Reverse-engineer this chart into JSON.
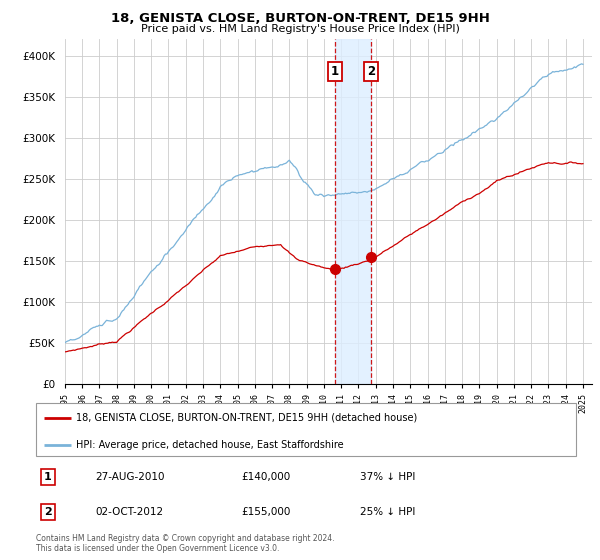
{
  "title": "18, GENISTA CLOSE, BURTON-ON-TRENT, DE15 9HH",
  "subtitle": "Price paid vs. HM Land Registry's House Price Index (HPI)",
  "legend_line1": "18, GENISTA CLOSE, BURTON-ON-TRENT, DE15 9HH (detached house)",
  "legend_line2": "HPI: Average price, detached house, East Staffordshire",
  "transaction1_date": "27-AUG-2010",
  "transaction1_price": "£140,000",
  "transaction1_hpi": "37% ↓ HPI",
  "transaction2_date": "02-OCT-2012",
  "transaction2_price": "£155,000",
  "transaction2_hpi": "25% ↓ HPI",
  "footer": "Contains HM Land Registry data © Crown copyright and database right 2024.\nThis data is licensed under the Open Government Licence v3.0.",
  "hpi_color": "#7ab3d9",
  "price_color": "#cc0000",
  "vline_color": "#cc0000",
  "highlight_color": "#ddeeff",
  "ylim_min": 0,
  "ylim_max": 420000,
  "yticks": [
    0,
    50000,
    100000,
    150000,
    200000,
    250000,
    300000,
    350000,
    400000
  ],
  "xlim_min": 1995.0,
  "xlim_max": 2025.5,
  "transaction1_x": 2010.65,
  "transaction2_x": 2012.75,
  "transaction1_y": 140000,
  "transaction2_y": 155000
}
